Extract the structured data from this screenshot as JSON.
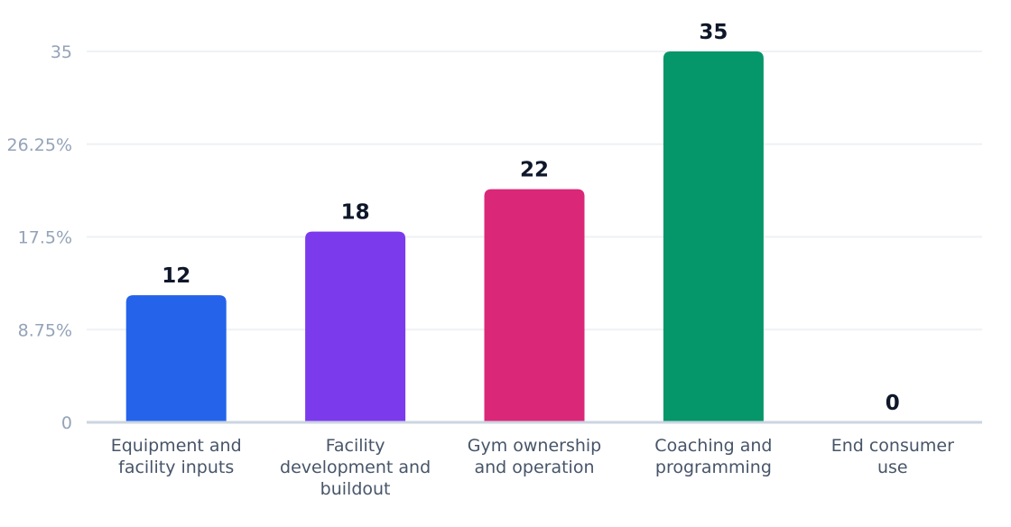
{
  "chart_data": {
    "type": "bar",
    "title": "",
    "xlabel": "",
    "ylabel": "",
    "categories": [
      [
        "Equipment and",
        "facility inputs"
      ],
      [
        "Facility",
        "development and",
        "buildout"
      ],
      [
        "Gym ownership",
        "and operation"
      ],
      [
        "Coaching and",
        "programming"
      ],
      [
        "End consumer",
        "use"
      ]
    ],
    "values": [
      12,
      18,
      22,
      35,
      0
    ],
    "value_labels": [
      "12",
      "18",
      "22",
      "35",
      "0"
    ],
    "colors": [
      "#2563eb",
      "#7c3aed",
      "#db2777",
      "#059669",
      "#94a3b8"
    ],
    "ylim": [
      0,
      35
    ],
    "yticks": [
      0,
      8.75,
      17.5,
      26.25,
      35
    ],
    "ytick_labels": [
      "0",
      "8.75%",
      "17.5%",
      "26.25%",
      "35"
    ],
    "grid": true,
    "legend": "none"
  }
}
